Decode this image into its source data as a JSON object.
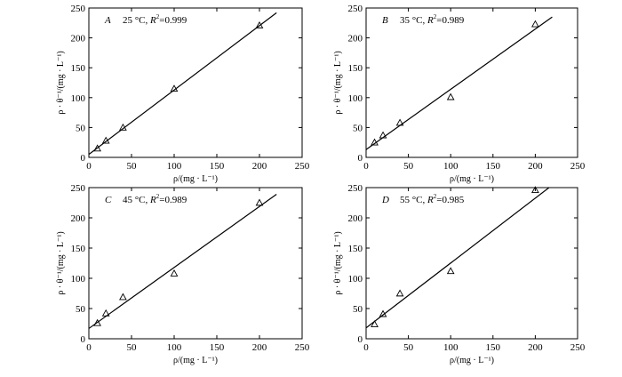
{
  "chart_data": [
    {
      "type": "scatter",
      "panel_label": "A",
      "annotation_temp": "25 °C, ",
      "annotation_r2_label": "R",
      "annotation_r2_exp": "2",
      "annotation_r2_value": "=0.999",
      "xlabel": "ρ/(mg · L⁻¹)",
      "ylabel": "ρ · θ⁻¹/(mg · L⁻¹)",
      "xlim": [
        0,
        250
      ],
      "ylim": [
        0,
        250
      ],
      "xticks": [
        "0",
        "50",
        "100",
        "150",
        "200",
        "250"
      ],
      "yticks": [
        "0",
        "50",
        "100",
        "150",
        "200",
        "250"
      ],
      "x": [
        10,
        20,
        40,
        100,
        200
      ],
      "y": [
        15,
        28,
        50,
        115,
        221
      ],
      "fit_line": {
        "x": [
          0,
          220
        ],
        "y": [
          5,
          242
        ]
      }
    },
    {
      "type": "scatter",
      "panel_label": "B",
      "annotation_temp": "35 °C, ",
      "annotation_r2_label": "R",
      "annotation_r2_exp": "2",
      "annotation_r2_value": "=0.989",
      "xlabel": "ρ/(mg · L⁻¹)",
      "ylabel": "ρ · θ⁻¹/(mg · L⁻¹)",
      "xlim": [
        0,
        250
      ],
      "ylim": [
        0,
        250
      ],
      "xticks": [
        "0",
        "50",
        "100",
        "150",
        "200",
        "250"
      ],
      "yticks": [
        "0",
        "50",
        "100",
        "150",
        "200",
        "250"
      ],
      "x": [
        10,
        20,
        40,
        100,
        200
      ],
      "y": [
        25,
        37,
        58,
        101,
        223
      ],
      "fit_line": {
        "x": [
          0,
          220
        ],
        "y": [
          13,
          235
        ]
      }
    },
    {
      "type": "scatter",
      "panel_label": "C",
      "annotation_temp": "45 °C, ",
      "annotation_r2_label": "R",
      "annotation_r2_exp": "2",
      "annotation_r2_value": "=0.989",
      "xlabel": "ρ/(mg · L⁻¹)",
      "ylabel": "ρ · θ⁻¹/(mg · L⁻¹)",
      "xlim": [
        0,
        250
      ],
      "ylim": [
        0,
        250
      ],
      "xticks": [
        "0",
        "50",
        "100",
        "150",
        "200",
        "250"
      ],
      "yticks": [
        "0",
        "50",
        "100",
        "150",
        "200",
        "250"
      ],
      "x": [
        10,
        20,
        40,
        100,
        200
      ],
      "y": [
        26,
        42,
        69,
        108,
        225
      ],
      "fit_line": {
        "x": [
          0,
          220
        ],
        "y": [
          17,
          239
        ]
      }
    },
    {
      "type": "scatter",
      "panel_label": "D",
      "annotation_temp": "55 °C, ",
      "annotation_r2_label": "R",
      "annotation_r2_exp": "2",
      "annotation_r2_value": "=0.985",
      "xlabel": "ρ/(mg · L⁻¹)",
      "ylabel": "ρ · θ⁻¹/(mg · L⁻¹)",
      "xlim": [
        0,
        250
      ],
      "ylim": [
        0,
        250
      ],
      "xticks": [
        "0",
        "50",
        "100",
        "150",
        "200",
        "250"
      ],
      "yticks": [
        "0",
        "50",
        "100",
        "150",
        "200",
        "250"
      ],
      "x": [
        10,
        20,
        40,
        100,
        200
      ],
      "y": [
        24,
        41,
        75,
        112,
        246
      ],
      "fit_line": {
        "x": [
          0,
          220
        ],
        "y": [
          18,
          254
        ]
      }
    }
  ]
}
